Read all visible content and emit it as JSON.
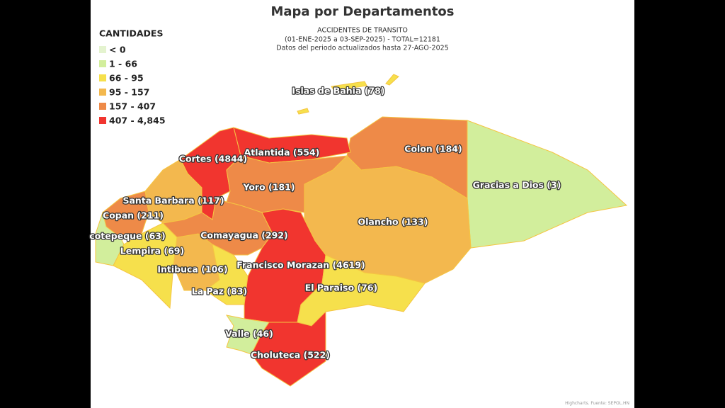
{
  "header": {
    "title": "Mapa por Departamentos",
    "subtitle": [
      "ACCIDENTES DE TRANSITO",
      "(01-ENE-2025 a 03-SEP-2025) - TOTAL=12181",
      "Datos del periodo actualizados hasta 27-AGO-2025"
    ]
  },
  "legend": {
    "title": "CANTIDADES",
    "classes": [
      {
        "label": "< 0",
        "to": 0,
        "color": "#e4f3cf"
      },
      {
        "label": "1 - 66",
        "from": 1,
        "to": 66,
        "color": "#d2ee9c"
      },
      {
        "label": "66 - 95",
        "from": 66,
        "to": 95,
        "color": "#f6e04c"
      },
      {
        "label": "95 - 157",
        "from": 95,
        "to": 157,
        "color": "#f3b84e"
      },
      {
        "label": "157 - 407",
        "from": 157,
        "to": 407,
        "color": "#ee8a48"
      },
      {
        "label": "407 - 4,845",
        "from": 407,
        "to": 4845,
        "color": "#f1352f"
      }
    ]
  },
  "regions": [
    {
      "label": "Gracias a Dios (3)",
      "value": 3
    },
    {
      "label": "Colon (184)",
      "value": 184
    },
    {
      "label": "Olancho (133)",
      "value": 133
    },
    {
      "label": "Atlantida (554)",
      "value": 554
    },
    {
      "label": "Cortes (4844)",
      "value": 4844
    },
    {
      "label": "Yoro (181)",
      "value": 181
    },
    {
      "label": "Santa Barbara (117)",
      "value": 117
    },
    {
      "label": "Copan (211)",
      "value": 211
    },
    {
      "label": "cotepeque (63)",
      "value": 63
    },
    {
      "label": "Lempira (69)",
      "value": 69
    },
    {
      "label": "Intibuca (106)",
      "value": 106
    },
    {
      "label": "La Paz (83)",
      "value": 83
    },
    {
      "label": "Comayagua (292)",
      "value": 292
    },
    {
      "label": "Francisco Morazan (4619)",
      "value": 4619
    },
    {
      "label": "El Paraiso (76)",
      "value": 76
    },
    {
      "label": "Valle (46)",
      "value": 46
    },
    {
      "label": "Choluteca (522)",
      "value": 522
    },
    {
      "label": "Islas de Bahia (78)",
      "value": 78
    }
  ],
  "credit": "Highcharts. Fuente: SEPOL.HN"
}
